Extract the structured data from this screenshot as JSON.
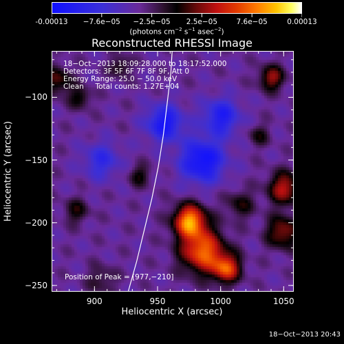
{
  "colorbar": {
    "labels": [
      "-0.00013",
      "−7.6e−05",
      "−2.5e−05",
      "2.5e−05",
      "7.6e−05",
      "0.00013"
    ],
    "units_prefix": "(photons cm",
    "units_exp1": "−2",
    "units_mid": " s",
    "units_exp2": "−1",
    "units_mid2": " asec",
    "units_exp3": "−2",
    "units_suffix": ")"
  },
  "overlay": {
    "time_range": "18−Oct−2013 18:09:28.000 to 18:17:52.000",
    "detectors": "Detectors: 3F 5F 6F 7F 8F 9F, Att 0",
    "energy_range": "Energy Range: 25.0 − 50.0 keV",
    "clean_counts": "Clean     Total counts: 1.27E+04",
    "peak": "Position of Peak = [977,−210]"
  },
  "timestamp": "18−Oct−2013 20:43",
  "chart_data": {
    "type": "heatmap",
    "title": "Reconstructed RHESSI Image",
    "xlabel": "Heliocentric X (arcsec)",
    "ylabel": "Heliocentric Y (arcsec)",
    "xlim": [
      866,
      1058
    ],
    "ylim": [
      -255,
      -63
    ],
    "xticks": [
      900,
      950,
      1000,
      1050
    ],
    "xtick_labels": [
      "900",
      "950",
      "1000",
      "1050"
    ],
    "yticks": [
      -100,
      -150,
      -200,
      -250
    ],
    "ytick_labels": [
      "−100",
      "−150",
      "−200",
      "−250"
    ],
    "colorbar_range": [
      -0.00013,
      0.00013
    ],
    "peak_position": [
      977,
      -210
    ],
    "limb_curve": [
      [
        926,
        -255
      ],
      [
        933,
        -230
      ],
      [
        939,
        -205
      ],
      [
        945,
        -180
      ],
      [
        950,
        -155
      ],
      [
        954,
        -130
      ],
      [
        957,
        -105
      ],
      [
        960,
        -80
      ],
      [
        961,
        -63
      ]
    ],
    "sources": [
      {
        "x": 975,
        "y": -198,
        "sigma": 9,
        "value": 0.00013
      },
      {
        "x": 985,
        "y": -222,
        "sigma": 12,
        "value": 0.000115
      },
      {
        "x": 1004,
        "y": -236,
        "sigma": 8,
        "value": 0.0001
      },
      {
        "x": 1050,
        "y": -172,
        "sigma": 9,
        "value": 8e-05
      },
      {
        "x": 1049,
        "y": -207,
        "sigma": 9,
        "value": 7e-05
      },
      {
        "x": 1040,
        "y": -84,
        "sigma": 7,
        "value": 7e-05
      },
      {
        "x": 870,
        "y": -86,
        "sigma": 8,
        "value": 5.5e-05
      },
      {
        "x": 888,
        "y": -100,
        "sigma": 6,
        "value": 4.5e-05
      },
      {
        "x": 920,
        "y": -75,
        "sigma": 6,
        "value": 4e-05
      },
      {
        "x": 885,
        "y": -190,
        "sigma": 7,
        "value": 4e-05
      },
      {
        "x": 935,
        "y": -162,
        "sigma": 6,
        "value": 4e-05
      },
      {
        "x": 1015,
        "y": -185,
        "sigma": 8,
        "value": 4e-05
      },
      {
        "x": 1030,
        "y": -130,
        "sigma": 6,
        "value": 3.5e-05
      },
      {
        "x": 905,
        "y": -245,
        "sigma": 8,
        "value": 3e-05
      },
      {
        "x": 955,
        "y": -120,
        "sigma": 10,
        "value": -8e-05
      },
      {
        "x": 985,
        "y": -150,
        "sigma": 12,
        "value": -9e-05
      },
      {
        "x": 1000,
        "y": -115,
        "sigma": 10,
        "value": -7e-05
      },
      {
        "x": 905,
        "y": -150,
        "sigma": 10,
        "value": -5e-05
      }
    ]
  }
}
